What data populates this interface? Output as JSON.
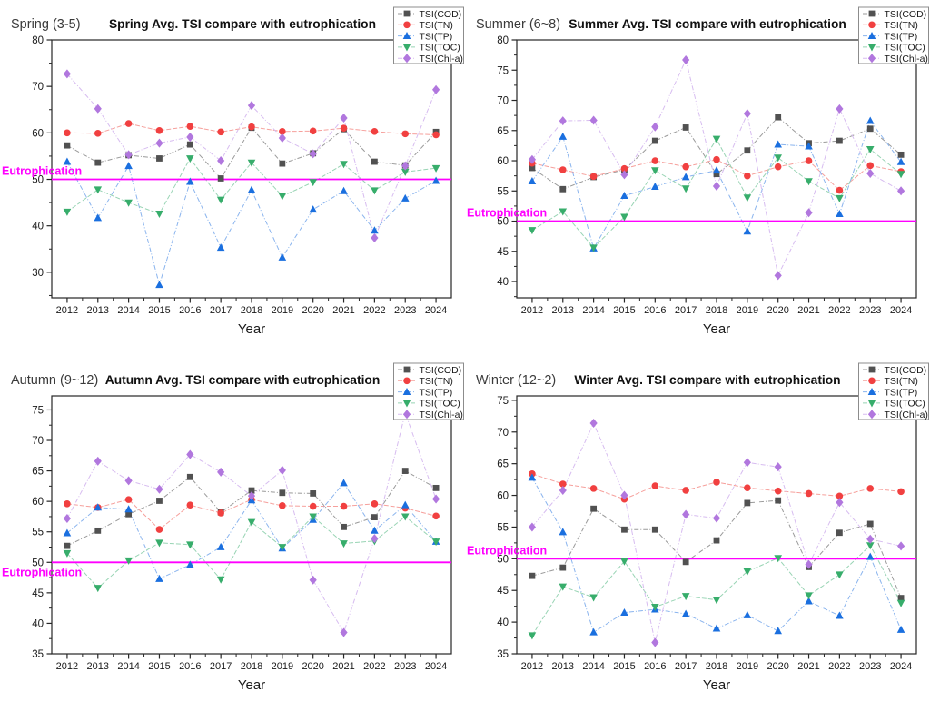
{
  "figure": {
    "background": "#ffffff",
    "layout": "2x2-grid-of-seasonal-tsi-line-charts"
  },
  "series_styles": [
    {
      "name": "TSI(COD)",
      "marker": "square",
      "marker_icon_name": "square-marker-icon",
      "color": "#515151",
      "line_color": "#9a9a9a",
      "dash": "5 2 1 2"
    },
    {
      "name": "TSI(TN)",
      "marker": "circle",
      "marker_icon_name": "circle-marker-icon",
      "color": "#F14040",
      "line_color": "#f6a09c",
      "dash": "5 2"
    },
    {
      "name": "TSI(TP)",
      "marker": "triangle-up",
      "marker_icon_name": "triangle-up-marker-icon",
      "color": "#1A6FDF",
      "line_color": "#8ab4ee",
      "dash": "5 2 1 2"
    },
    {
      "name": "TSI(TOC)",
      "marker": "triangle-down",
      "marker_icon_name": "triangle-down-marker-icon",
      "color": "#37AD6B",
      "line_color": "#98d4b4",
      "dash": "5 2"
    },
    {
      "name": "TSI(Chl-a)",
      "marker": "diamond",
      "marker_icon_name": "diamond-marker-icon",
      "color": "#B177DE",
      "line_color": "#d7bcf0",
      "dash": "5 2 1 2"
    }
  ],
  "legend": {
    "position": "top-right",
    "items": [
      "TSI(COD)",
      "TSI(TN)",
      "TSI(TP)",
      "TSI(TOC)",
      "TSI(Chl-a)"
    ]
  },
  "eutrophication": {
    "label": "Eutrophication",
    "value": 50,
    "color": "#FF00FF"
  },
  "chart_data": [
    {
      "type": "line",
      "season_label": "Spring (3-5)",
      "title": "Spring Avg. TSI compare with eutrophication",
      "xlabel": "Year",
      "ylabel": "",
      "x": [
        2012,
        2013,
        2014,
        2015,
        2016,
        2017,
        2018,
        2019,
        2020,
        2021,
        2022,
        2023,
        2024
      ],
      "ylim": [
        24.5,
        80
      ],
      "yticks": [
        30,
        40,
        50,
        60,
        70,
        80
      ],
      "grid": false,
      "eutro_label_side": "above",
      "series": [
        {
          "name": "TSI(COD)",
          "values": [
            57.3,
            53.6,
            55.2,
            54.5,
            57.5,
            50.2,
            61.1,
            53.4,
            55.6,
            60.8,
            53.8,
            53.0,
            60.2
          ]
        },
        {
          "name": "TSI(TN)",
          "values": [
            60.0,
            59.9,
            62.0,
            60.5,
            61.4,
            60.2,
            61.3,
            60.3,
            60.4,
            61.0,
            60.3,
            59.8,
            59.6
          ]
        },
        {
          "name": "TSI(TP)",
          "values": [
            53.8,
            41.7,
            52.9,
            27.3,
            49.5,
            35.3,
            47.7,
            33.2,
            43.5,
            47.5,
            39.0,
            45.9,
            49.7
          ]
        },
        {
          "name": "TSI(TOC)",
          "values": [
            43.0,
            47.8,
            45.0,
            42.6,
            54.5,
            45.6,
            53.6,
            46.4,
            49.4,
            53.3,
            47.6,
            51.6,
            52.4
          ]
        },
        {
          "name": "TSI(Chl-a)",
          "values": [
            72.7,
            65.2,
            55.3,
            57.8,
            59.1,
            54.0,
            65.9,
            58.9,
            55.5,
            63.2,
            37.4,
            52.9,
            69.3
          ]
        }
      ]
    },
    {
      "type": "line",
      "season_label": "Summer (6~8)",
      "title": "Summer Avg. TSI compare with eutrophication",
      "xlabel": "Year",
      "ylabel": "",
      "x": [
        2012,
        2013,
        2014,
        2015,
        2016,
        2017,
        2018,
        2019,
        2020,
        2021,
        2022,
        2023,
        2024
      ],
      "ylim": [
        37.3,
        80
      ],
      "yticks": [
        40,
        45,
        50,
        55,
        60,
        65,
        70,
        75,
        80
      ],
      "grid": false,
      "eutro_label_side": "above",
      "series": [
        {
          "name": "TSI(COD)",
          "values": [
            58.8,
            55.3,
            57.3,
            58.5,
            63.3,
            65.5,
            57.8,
            61.7,
            67.2,
            62.9,
            63.3,
            65.3,
            61.0
          ]
        },
        {
          "name": "TSI(TN)",
          "values": [
            59.6,
            58.5,
            57.4,
            58.7,
            60.0,
            59.0,
            60.2,
            57.5,
            59.0,
            60.0,
            55.1,
            59.2,
            58.2
          ]
        },
        {
          "name": "TSI(TP)",
          "values": [
            56.6,
            64.0,
            45.5,
            54.2,
            55.7,
            57.3,
            58.4,
            48.3,
            62.7,
            62.4,
            51.2,
            66.6,
            59.8
          ]
        },
        {
          "name": "TSI(TOC)",
          "values": [
            48.5,
            51.6,
            45.6,
            50.7,
            58.4,
            55.4,
            63.6,
            53.9,
            60.5,
            56.6,
            53.8,
            61.9,
            57.8
          ]
        },
        {
          "name": "TSI(Chl-a)",
          "values": [
            60.2,
            66.6,
            66.7,
            57.7,
            65.6,
            76.7,
            55.8,
            67.8,
            41.0,
            51.4,
            68.6,
            57.9,
            55.0
          ]
        }
      ]
    },
    {
      "type": "line",
      "season_label": "Autumn (9~12)",
      "title": "Autumn Avg. TSI compare with eutrophication",
      "xlabel": "Year",
      "ylabel": "",
      "x": [
        2012,
        2013,
        2014,
        2015,
        2016,
        2017,
        2018,
        2019,
        2020,
        2021,
        2022,
        2023,
        2024
      ],
      "ylim": [
        35,
        77.3
      ],
      "yticks": [
        35,
        40,
        45,
        50,
        55,
        60,
        65,
        70,
        75
      ],
      "grid": false,
      "eutro_label_side": "below",
      "series": [
        {
          "name": "TSI(COD)",
          "values": [
            52.7,
            55.2,
            57.9,
            60.1,
            64.0,
            58.2,
            61.8,
            61.4,
            61.3,
            55.8,
            57.4,
            65.0,
            62.2
          ]
        },
        {
          "name": "TSI(TN)",
          "values": [
            59.6,
            59.0,
            60.3,
            55.4,
            59.4,
            58.1,
            60.3,
            59.3,
            59.2,
            59.2,
            59.6,
            58.9,
            57.6
          ]
        },
        {
          "name": "TSI(TP)",
          "values": [
            54.8,
            59.0,
            58.7,
            47.3,
            49.6,
            52.5,
            60.2,
            52.3,
            57.0,
            63.0,
            55.2,
            59.4,
            53.4
          ]
        },
        {
          "name": "TSI(TOC)",
          "values": [
            51.5,
            45.8,
            50.3,
            53.2,
            52.9,
            47.2,
            56.6,
            52.5,
            57.5,
            53.1,
            53.5,
            57.5,
            53.4
          ]
        },
        {
          "name": "TSI(Chl-a)",
          "values": [
            57.2,
            66.6,
            63.4,
            62.0,
            67.7,
            64.8,
            60.9,
            65.1,
            47.1,
            38.5,
            53.9,
            74.5,
            60.4
          ]
        }
      ]
    },
    {
      "type": "line",
      "season_label": "Winter (12~2)",
      "title": "Winter Avg. TSI compare with eutrophication",
      "xlabel": "Year",
      "ylabel": "",
      "x": [
        2012,
        2013,
        2014,
        2015,
        2016,
        2017,
        2018,
        2019,
        2020,
        2021,
        2022,
        2023,
        2024
      ],
      "ylim": [
        35,
        75.7
      ],
      "yticks": [
        35,
        40,
        45,
        50,
        55,
        60,
        65,
        70,
        75
      ],
      "grid": false,
      "eutro_label_side": "above",
      "series": [
        {
          "name": "TSI(COD)",
          "values": [
            47.3,
            48.6,
            57.9,
            54.6,
            54.6,
            49.5,
            52.9,
            58.8,
            59.2,
            48.7,
            54.1,
            55.5,
            43.8
          ]
        },
        {
          "name": "TSI(TN)",
          "values": [
            63.4,
            61.8,
            61.1,
            59.4,
            61.5,
            60.8,
            62.1,
            61.2,
            60.7,
            60.3,
            59.9,
            61.1,
            60.6
          ]
        },
        {
          "name": "TSI(TP)",
          "values": [
            62.8,
            54.2,
            38.4,
            41.5,
            42.0,
            41.3,
            39.0,
            41.1,
            38.6,
            43.3,
            41.0,
            50.3,
            38.8
          ]
        },
        {
          "name": "TSI(TOC)",
          "values": [
            37.9,
            45.6,
            43.9,
            49.6,
            42.4,
            44.1,
            43.5,
            48.0,
            50.1,
            44.2,
            47.5,
            52.1,
            43.0
          ]
        },
        {
          "name": "TSI(Chl-a)",
          "values": [
            55.0,
            60.8,
            71.4,
            60.0,
            36.8,
            57.0,
            56.4,
            65.2,
            64.5,
            49.1,
            58.9,
            53.1,
            52.0
          ]
        }
      ]
    }
  ]
}
